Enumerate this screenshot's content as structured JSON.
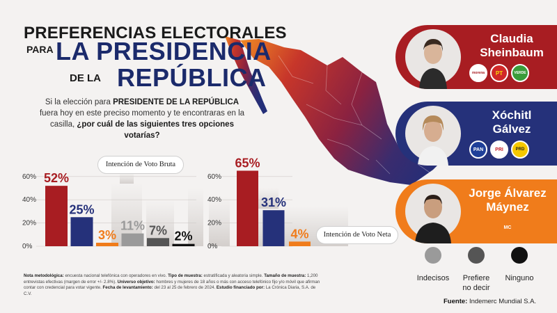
{
  "title": {
    "line1": "PREFERENCIAS ELECTORALES",
    "line2": "PARA",
    "line3": "LA PRESIDENCIA",
    "line4": "DE LA",
    "line5": "REPÚBLICA"
  },
  "question": {
    "part1": "Si la elección para ",
    "bold1": "PRESIDENTE DE LA REPÚBLICA",
    "part2": " fuera hoy en este preciso momento y te encontraras en la casilla, ",
    "bold2": "¿por cuál de las siguientes tres opciones votarías?"
  },
  "colors": {
    "morena": "#a81d22",
    "pan_pri_prd": "#25317a",
    "mc": "#f07c1b",
    "indecisos": "#9a9a9a",
    "prefiere": "#555555",
    "ninguno": "#111111"
  },
  "chart_data": [
    {
      "type": "bar",
      "title": "Intención de Voto Bruta",
      "yticks": [
        "0%",
        "20%",
        "40%",
        "60%"
      ],
      "ylim": [
        0,
        70
      ],
      "categories": [
        "Claudia Sheinbaum",
        "Xóchitl Gálvez",
        "Jorge Álvarez Máynez",
        "Indecisos",
        "Prefiere no decir",
        "Ninguno"
      ],
      "values": [
        52,
        25,
        3,
        11,
        7,
        2
      ],
      "labels": [
        "52%",
        "25%",
        "3%",
        "11%",
        "7%",
        "2%"
      ],
      "colors": [
        "#a81d22",
        "#25317a",
        "#f07c1b",
        "#9a9a9a",
        "#555555",
        "#111111"
      ]
    },
    {
      "type": "bar",
      "title": "Intención de Voto Neta",
      "yticks": [
        "0%",
        "20%",
        "40%",
        "60%"
      ],
      "ylim": [
        0,
        70
      ],
      "categories": [
        "Claudia Sheinbaum",
        "Xóchitl Gálvez",
        "Jorge Álvarez Máynez"
      ],
      "values": [
        65,
        31,
        4
      ],
      "labels": [
        "65%",
        "31%",
        "4%"
      ],
      "colors": [
        "#a81d22",
        "#25317a",
        "#f07c1b"
      ]
    }
  ],
  "candidates": [
    {
      "name1": "Claudia",
      "name2": "Sheinbaum",
      "color": "#a81d22",
      "parties": [
        "morena",
        "PT",
        "VERDE"
      ]
    },
    {
      "name1": "Xóchitl",
      "name2": "Gálvez",
      "color": "#25317a",
      "parties": [
        "PAN",
        "PRI",
        "PRD"
      ]
    },
    {
      "name1": "Jorge Álvarez",
      "name2": "Máynez",
      "color": "#f07c1b",
      "parties": [
        "MC"
      ]
    }
  ],
  "legend": [
    {
      "label": "Indecisos"
    },
    {
      "label": "Prefiere no decir"
    },
    {
      "label": "Ninguno"
    }
  ],
  "note": {
    "k1": "Nota metodológica:",
    "v1": " encuesta nacional telefónica con operadores en vivo. ",
    "k2": "Tipo de muestra:",
    "v2": " estratificada y aleatoria simple. ",
    "k3": "Tamaño de muestra:",
    "v3": " 1,200 entrevistas efectivas (margen de error +/- 2.8%). ",
    "k4": "Universo objetivo:",
    "v4": " hombres y mujeres de 18 años o más con acceso telefónico fijo y/o móvil que afirman contar con credencial para votar vigente. ",
    "k5": "Fecha de levantamiento:",
    "v5": " del 23 al 25 de febrero de 2024. ",
    "k6": "Estudio financiado por:",
    "v6": " La Crónica Diaria, S.A. de C.V."
  },
  "source": {
    "label": "Fuente:",
    "value": " Indemerc Mundial S.A."
  }
}
